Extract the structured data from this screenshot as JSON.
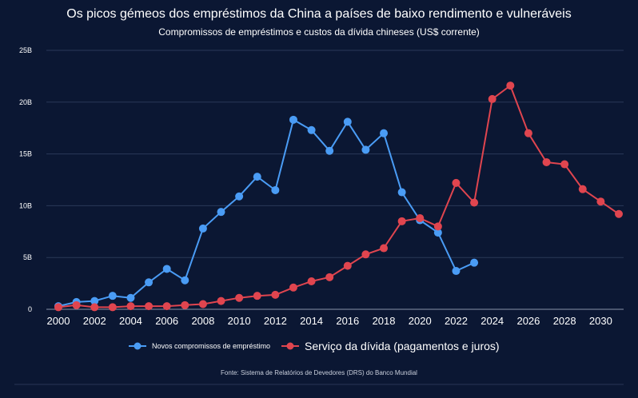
{
  "chart_data": {
    "type": "line",
    "title": "Os picos gémeos dos empréstimos da China a países de baixo rendimento e vulneráveis",
    "subtitle": "Compromissos de empréstimos e custos da dívida chineses (US$ corrente)",
    "source": "Fonte: Sistema de Relatórios de Devedores (DRS) do Banco Mundial",
    "xlim": [
      2000,
      2031
    ],
    "ylim": [
      0,
      25
    ],
    "x_ticks": [
      2000,
      2002,
      2004,
      2006,
      2008,
      2010,
      2012,
      2014,
      2016,
      2018,
      2020,
      2022,
      2024,
      2026,
      2028,
      2030
    ],
    "x_tick_labels": [
      "2000",
      "2002",
      "2004",
      "2006",
      "2008",
      "2010",
      "2012",
      "2014",
      "2016",
      "2018",
      "2020",
      "2022",
      "2024",
      "2026",
      "2028",
      "2030"
    ],
    "y_ticks": [
      0,
      5,
      10,
      15,
      20,
      25
    ],
    "y_tick_labels": [
      "0",
      "5B",
      "10B",
      "15B",
      "20B",
      "25B"
    ],
    "grid": true,
    "legend_position": "bottom",
    "series": [
      {
        "name": "Novos compromissos de empréstimo",
        "color": "#4a9cf5",
        "x": [
          2000,
          2001,
          2002,
          2003,
          2004,
          2005,
          2006,
          2007,
          2008,
          2009,
          2010,
          2011,
          2012,
          2013,
          2014,
          2015,
          2016,
          2017,
          2018,
          2019,
          2020,
          2021,
          2022,
          2023
        ],
        "values": [
          0.3,
          0.7,
          0.8,
          1.3,
          1.1,
          2.6,
          3.9,
          2.8,
          7.8,
          9.4,
          10.9,
          12.8,
          11.5,
          18.3,
          17.3,
          15.3,
          18.1,
          15.4,
          17.0,
          11.3,
          8.6,
          7.4,
          3.7,
          4.5
        ]
      },
      {
        "name": "Serviço da dívida (pagamentos e juros)",
        "color": "#e0454f",
        "x": [
          2000,
          2001,
          2002,
          2003,
          2004,
          2005,
          2006,
          2007,
          2008,
          2009,
          2010,
          2011,
          2012,
          2013,
          2014,
          2015,
          2016,
          2017,
          2018,
          2019,
          2020,
          2021,
          2022,
          2023,
          2024,
          2025,
          2026,
          2027,
          2028,
          2029,
          2030,
          2031
        ],
        "values": [
          0.2,
          0.4,
          0.2,
          0.2,
          0.3,
          0.3,
          0.3,
          0.4,
          0.5,
          0.8,
          1.1,
          1.3,
          1.4,
          2.1,
          2.7,
          3.1,
          4.2,
          5.3,
          5.9,
          8.5,
          8.8,
          8.0,
          12.2,
          10.3,
          20.3,
          21.6,
          17.0,
          14.2,
          14.0,
          11.6,
          10.4,
          9.2
        ]
      }
    ]
  }
}
